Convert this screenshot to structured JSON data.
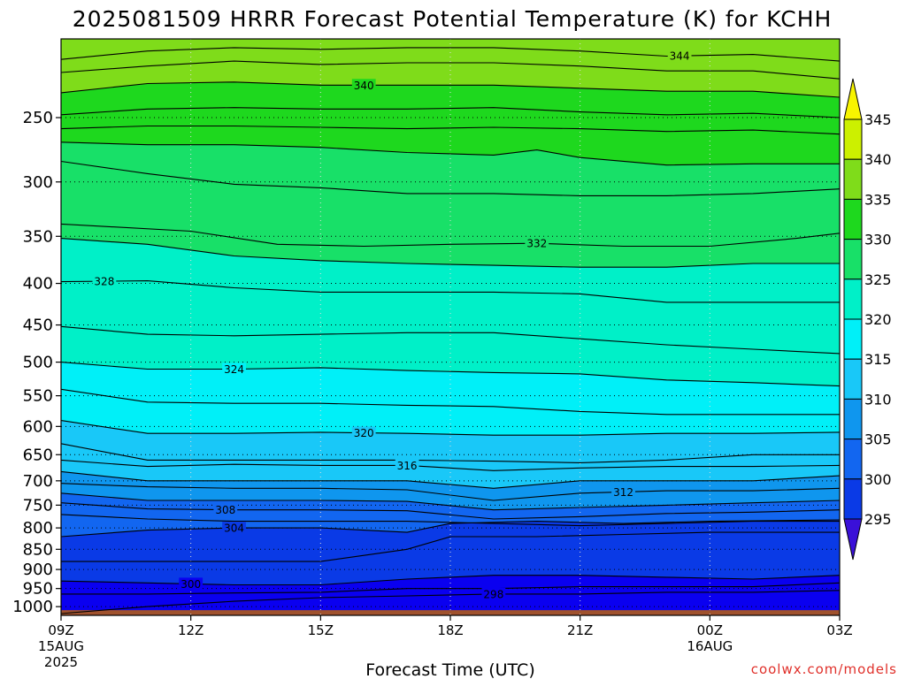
{
  "chart_data": {
    "type": "heatmap",
    "title": "2025081509 HRRR Forecast Potential Temperature (K) for KCHH",
    "xlabel": "Forecast Time (UTC)",
    "ylabel": "",
    "credit": "coolwx.com/models",
    "y_axis": {
      "scale": "log-pressure",
      "range_hPa": [
        1025,
        200
      ],
      "ticks": [
        "250",
        "300",
        "350",
        "400",
        "450",
        "500",
        "550",
        "600",
        "650",
        "700",
        "750",
        "800",
        "850",
        "900",
        "950",
        "1000"
      ]
    },
    "x_axis": {
      "range_hours": [
        0,
        18
      ],
      "ticks": [
        {
          "h": 0,
          "label": "09Z",
          "sub1": "15AUG",
          "sub2": "2025"
        },
        {
          "h": 3,
          "label": "12Z",
          "sub1": "",
          "sub2": ""
        },
        {
          "h": 6,
          "label": "15Z",
          "sub1": "",
          "sub2": ""
        },
        {
          "h": 9,
          "label": "18Z",
          "sub1": "",
          "sub2": ""
        },
        {
          "h": 12,
          "label": "21Z",
          "sub1": "",
          "sub2": ""
        },
        {
          "h": 15,
          "label": "00Z",
          "sub1": "16AUG",
          "sub2": ""
        },
        {
          "h": 18,
          "label": "03Z",
          "sub1": "",
          "sub2": ""
        }
      ]
    },
    "grid": true,
    "colorbar": {
      "levels": [
        295,
        300,
        305,
        310,
        315,
        320,
        325,
        330,
        335,
        340,
        345
      ],
      "colors": [
        "#3a10d8",
        "#0a00f0",
        "#0a3ae6",
        "#1266f0",
        "#0f96ee",
        "#19c8f8",
        "#00f0f8",
        "#00f0c8",
        "#18e068",
        "#1ed81e",
        "#7fdc1a",
        "#ccf000",
        "#f8f400"
      ],
      "extend": "both"
    },
    "series": [
      {
        "level": 344,
        "label": "344",
        "label_h": 14.3,
        "points": [
          [
            0,
            212
          ],
          [
            2,
            207
          ],
          [
            4,
            205
          ],
          [
            6,
            206
          ],
          [
            8,
            205
          ],
          [
            10,
            205
          ],
          [
            12,
            207
          ],
          [
            14,
            210
          ],
          [
            16,
            209
          ],
          [
            18,
            213
          ]
        ]
      },
      {
        "level": 342,
        "label": "",
        "label_h": null,
        "points": [
          [
            0,
            220
          ],
          [
            2,
            216
          ],
          [
            4,
            213
          ],
          [
            6,
            215
          ],
          [
            8,
            214
          ],
          [
            10,
            214
          ],
          [
            12,
            216
          ],
          [
            14,
            219
          ],
          [
            16,
            219
          ],
          [
            18,
            224
          ]
        ]
      },
      {
        "level": 340,
        "label": "340",
        "label_h": 7,
        "points": [
          [
            0,
            233
          ],
          [
            2,
            227
          ],
          [
            4,
            226
          ],
          [
            6,
            228
          ],
          [
            8,
            228
          ],
          [
            10,
            228
          ],
          [
            12,
            230
          ],
          [
            14,
            232
          ],
          [
            16,
            232
          ],
          [
            18,
            236
          ]
        ]
      },
      {
        "level": 338,
        "label": "",
        "label_h": null,
        "points": [
          [
            0,
            248
          ],
          [
            2,
            244
          ],
          [
            4,
            243
          ],
          [
            6,
            244
          ],
          [
            8,
            244
          ],
          [
            10,
            243
          ],
          [
            12,
            246
          ],
          [
            14,
            248
          ],
          [
            16,
            247
          ],
          [
            18,
            250
          ]
        ]
      },
      {
        "level": 336,
        "label": "",
        "label_h": null,
        "points": [
          [
            0,
            258
          ],
          [
            2,
            256
          ],
          [
            4,
            256
          ],
          [
            6,
            257
          ],
          [
            8,
            258
          ],
          [
            10,
            257
          ],
          [
            12,
            258
          ],
          [
            14,
            260
          ],
          [
            16,
            259
          ],
          [
            18,
            262
          ]
        ]
      },
      {
        "level": 335,
        "label": "",
        "label_h": null,
        "points": [
          [
            0,
            268
          ],
          [
            2,
            270
          ],
          [
            4,
            270
          ],
          [
            6,
            272
          ],
          [
            8,
            276
          ],
          [
            10,
            278
          ],
          [
            11,
            274
          ],
          [
            12,
            280
          ],
          [
            14,
            286
          ],
          [
            16,
            285
          ],
          [
            18,
            285
          ]
        ]
      },
      {
        "level": 334,
        "label": "",
        "label_h": null,
        "points": [
          [
            0,
            283
          ],
          [
            2,
            293
          ],
          [
            4,
            302
          ],
          [
            6,
            305
          ],
          [
            8,
            310
          ],
          [
            10,
            310
          ],
          [
            12,
            312
          ],
          [
            14,
            312
          ],
          [
            16,
            310
          ],
          [
            18,
            306
          ]
        ]
      },
      {
        "level": 332,
        "label": "332",
        "label_h": 11,
        "points": [
          [
            0,
            338
          ],
          [
            3,
            345
          ],
          [
            5,
            358
          ],
          [
            7,
            360
          ],
          [
            9,
            358
          ],
          [
            11,
            357
          ],
          [
            13,
            360
          ],
          [
            15,
            360
          ],
          [
            17,
            352
          ],
          [
            18,
            347
          ]
        ]
      },
      {
        "level": 330,
        "label": "",
        "label_h": null,
        "points": [
          [
            0,
            352
          ],
          [
            2,
            358
          ],
          [
            4,
            370
          ],
          [
            6,
            375
          ],
          [
            8,
            378
          ],
          [
            10,
            380
          ],
          [
            12,
            382
          ],
          [
            14,
            382
          ],
          [
            16,
            378
          ],
          [
            18,
            378
          ]
        ]
      },
      {
        "level": 328,
        "label": "328",
        "label_h": 1,
        "points": [
          [
            0,
            398
          ],
          [
            2,
            397
          ],
          [
            4,
            405
          ],
          [
            6,
            410
          ],
          [
            8,
            410
          ],
          [
            10,
            410
          ],
          [
            12,
            412
          ],
          [
            14,
            422
          ],
          [
            16,
            422
          ],
          [
            18,
            422
          ]
        ]
      },
      {
        "level": 326,
        "label": "",
        "label_h": null,
        "points": [
          [
            0,
            452
          ],
          [
            2,
            462
          ],
          [
            4,
            464
          ],
          [
            6,
            462
          ],
          [
            8,
            460
          ],
          [
            10,
            460
          ],
          [
            12,
            468
          ],
          [
            14,
            476
          ],
          [
            16,
            482
          ],
          [
            18,
            488
          ]
        ]
      },
      {
        "level": 324,
        "label": "324",
        "label_h": 4,
        "points": [
          [
            0,
            500
          ],
          [
            2,
            510
          ],
          [
            4,
            510
          ],
          [
            6,
            508
          ],
          [
            8,
            512
          ],
          [
            10,
            515
          ],
          [
            12,
            517
          ],
          [
            14,
            526
          ],
          [
            16,
            530
          ],
          [
            18,
            535
          ]
        ]
      },
      {
        "level": 322,
        "label": "",
        "label_h": null,
        "points": [
          [
            0,
            540
          ],
          [
            2,
            560
          ],
          [
            4,
            562
          ],
          [
            6,
            562
          ],
          [
            8,
            565
          ],
          [
            10,
            567
          ],
          [
            12,
            575
          ],
          [
            14,
            580
          ],
          [
            16,
            580
          ],
          [
            18,
            580
          ]
        ]
      },
      {
        "level": 320,
        "label": "320",
        "label_h": 7,
        "points": [
          [
            0,
            590
          ],
          [
            2,
            612
          ],
          [
            4,
            612
          ],
          [
            6,
            610
          ],
          [
            8,
            612
          ],
          [
            10,
            615
          ],
          [
            12,
            615
          ],
          [
            14,
            612
          ],
          [
            16,
            612
          ],
          [
            18,
            610
          ]
        ]
      },
      {
        "level": 318,
        "label": "",
        "label_h": null,
        "points": [
          [
            0,
            630
          ],
          [
            2,
            660
          ],
          [
            4,
            660
          ],
          [
            6,
            660
          ],
          [
            8,
            660
          ],
          [
            10,
            662
          ],
          [
            12,
            665
          ],
          [
            14,
            660
          ],
          [
            16,
            650
          ],
          [
            18,
            650
          ]
        ]
      },
      {
        "level": 316,
        "label": "316",
        "label_h": 8,
        "points": [
          [
            0,
            660
          ],
          [
            2,
            672
          ],
          [
            4,
            668
          ],
          [
            6,
            670
          ],
          [
            8,
            670
          ],
          [
            10,
            680
          ],
          [
            12,
            675
          ],
          [
            14,
            672
          ],
          [
            16,
            672
          ],
          [
            18,
            670
          ]
        ]
      },
      {
        "level": 314,
        "label": "",
        "label_h": null,
        "points": [
          [
            0,
            682
          ],
          [
            2,
            700
          ],
          [
            4,
            700
          ],
          [
            6,
            700
          ],
          [
            8,
            700
          ],
          [
            10,
            715
          ],
          [
            12,
            700
          ],
          [
            14,
            700
          ],
          [
            16,
            700
          ],
          [
            18,
            690
          ]
        ]
      },
      {
        "level": 312,
        "label": "312",
        "label_h": 13,
        "points": [
          [
            0,
            705
          ],
          [
            2,
            712
          ],
          [
            4,
            715
          ],
          [
            6,
            715
          ],
          [
            8,
            718
          ],
          [
            10,
            740
          ],
          [
            12,
            725
          ],
          [
            14,
            720
          ],
          [
            16,
            720
          ],
          [
            18,
            715
          ]
        ]
      },
      {
        "level": 310,
        "label": "",
        "label_h": null,
        "points": [
          [
            0,
            725
          ],
          [
            2,
            740
          ],
          [
            4,
            740
          ],
          [
            6,
            740
          ],
          [
            8,
            742
          ],
          [
            10,
            760
          ],
          [
            12,
            755
          ],
          [
            14,
            750
          ],
          [
            16,
            745
          ],
          [
            18,
            740
          ]
        ]
      },
      {
        "level": 308,
        "label": "308",
        "label_h": 3.8,
        "points": [
          [
            0,
            745
          ],
          [
            2,
            758
          ],
          [
            4,
            760
          ],
          [
            6,
            760
          ],
          [
            8,
            762
          ],
          [
            10,
            780
          ],
          [
            12,
            775
          ],
          [
            14,
            768
          ],
          [
            16,
            765
          ],
          [
            18,
            760
          ]
        ]
      },
      {
        "level": 306,
        "label": "",
        "label_h": null,
        "points": [
          [
            0,
            770
          ],
          [
            2,
            780
          ],
          [
            4,
            785
          ],
          [
            6,
            785
          ],
          [
            8,
            785
          ],
          [
            10,
            790
          ],
          [
            12,
            795
          ],
          [
            14,
            790
          ],
          [
            16,
            785
          ],
          [
            18,
            785
          ]
        ]
      },
      {
        "level": 304,
        "label": "304",
        "label_h": 4,
        "points": [
          [
            0,
            820
          ],
          [
            2,
            805
          ],
          [
            4,
            800
          ],
          [
            6,
            800
          ],
          [
            8,
            810
          ],
          [
            9,
            790
          ],
          [
            11,
            785
          ],
          [
            13,
            790
          ],
          [
            15,
            785
          ],
          [
            18,
            782
          ]
        ]
      },
      {
        "level": 302,
        "label": "",
        "label_h": null,
        "points": [
          [
            0,
            880
          ],
          [
            2,
            880
          ],
          [
            4,
            880
          ],
          [
            6,
            880
          ],
          [
            8,
            850
          ],
          [
            9,
            820
          ],
          [
            11,
            820
          ],
          [
            13,
            815
          ],
          [
            15,
            810
          ],
          [
            18,
            810
          ]
        ]
      },
      {
        "level": 300,
        "label": "300",
        "label_h": 3,
        "points": [
          [
            0,
            930
          ],
          [
            2,
            935
          ],
          [
            4,
            940
          ],
          [
            6,
            940
          ],
          [
            8,
            925
          ],
          [
            10,
            915
          ],
          [
            12,
            915
          ],
          [
            14,
            920
          ],
          [
            16,
            925
          ],
          [
            18,
            915
          ]
        ]
      },
      {
        "level": 299,
        "label": "",
        "label_h": null,
        "points": [
          [
            0,
            965
          ],
          [
            2,
            965
          ],
          [
            4,
            962
          ],
          [
            6,
            960
          ],
          [
            8,
            950
          ],
          [
            10,
            950
          ],
          [
            12,
            945
          ],
          [
            14,
            945
          ],
          [
            16,
            945
          ],
          [
            18,
            935
          ]
        ]
      },
      {
        "level": 298,
        "label": "298",
        "label_h": 10,
        "points": [
          [
            0,
            1020
          ],
          [
            2,
            1000
          ],
          [
            4,
            985
          ],
          [
            6,
            975
          ],
          [
            8,
            970
          ],
          [
            10,
            965
          ],
          [
            12,
            965
          ],
          [
            14,
            960
          ],
          [
            16,
            960
          ],
          [
            18,
            955
          ]
        ]
      }
    ],
    "terrain_hPa": 1010
  }
}
